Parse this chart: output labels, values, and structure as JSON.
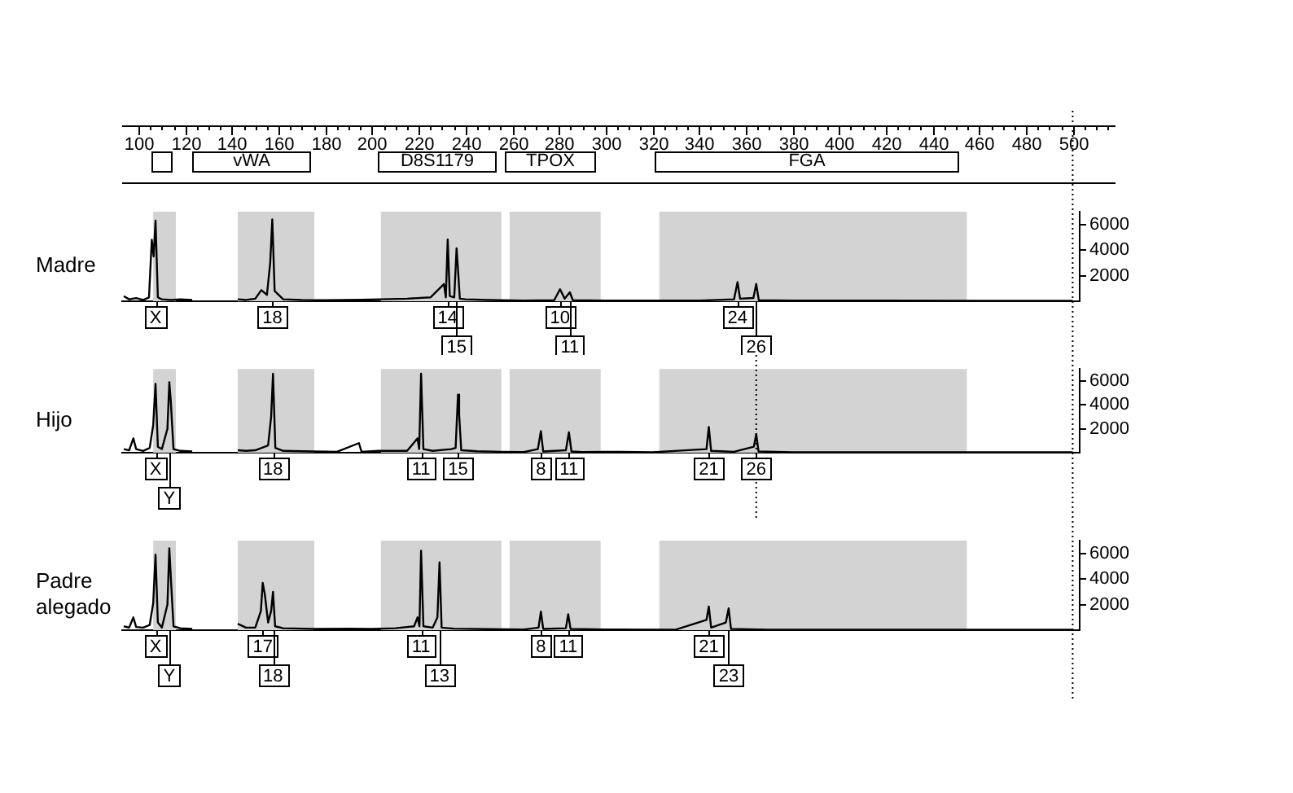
{
  "chart_data": [
    {
      "type": "other",
      "annotations": [
        "vWA",
        "D8S1179",
        "TPOX",
        "FGA"
      ]
    },
    {
      "type": "line",
      "ylabel": "Madre",
      "xlim": [
        93,
        503
      ],
      "ylim": [
        0,
        7000
      ],
      "yticks": [
        2000,
        4000,
        6000
      ],
      "grid": false,
      "legend": false,
      "xticks": [
        100,
        120,
        140,
        160,
        180,
        200,
        220,
        240,
        260,
        280,
        300,
        320,
        340,
        360,
        380,
        400,
        420,
        440,
        460,
        480,
        500
      ],
      "series": [
        {
          "color": "#000000",
          "x": [
            93.7,
            96,
            99,
            102,
            104.5,
            105.7,
            106.5,
            107.3,
            108.3,
            110,
            114,
            118,
            123,
            130,
            142.5,
            146,
            150,
            152.6,
            155,
            156.4,
            157.3,
            158.3,
            162,
            170,
            180,
            195,
            203,
            215,
            225,
            230.8,
            231.6,
            232.4,
            233.3,
            235.2,
            236.2,
            236.8,
            237.6,
            240,
            250,
            265,
            278,
            280.5,
            282.5,
            284.7,
            286,
            300,
            340,
            355,
            356.5,
            357.6,
            363.3,
            364.5,
            365.6,
            380,
            420,
            460,
            500
          ],
          "values": [
            400,
            150,
            250,
            100,
            300,
            4800,
            3500,
            6300,
            300,
            150,
            100,
            150,
            100,
            null,
            150,
            100,
            200,
            870,
            500,
            3000,
            6400,
            800,
            150,
            100,
            80,
            120,
            150,
            200,
            300,
            1350,
            300,
            4830,
            400,
            300,
            4140,
            2500,
            200,
            150,
            100,
            50,
            80,
            940,
            200,
            700,
            80,
            50,
            50,
            150,
            1500,
            200,
            250,
            1350,
            80,
            50,
            50,
            40,
            40
          ]
        }
      ],
      "bands": [
        {
          "axis": "x",
          "from": 106.3,
          "to": 116,
          "color": "#d3d3d3"
        },
        {
          "axis": "x",
          "from": 142.5,
          "to": 175.3,
          "color": "#d3d3d3"
        },
        {
          "axis": "x",
          "from": 203.8,
          "to": 255.4,
          "color": "#d3d3d3"
        },
        {
          "axis": "x",
          "from": 258.9,
          "to": 297.9,
          "color": "#d3d3d3"
        },
        {
          "axis": "x",
          "from": 323,
          "to": 454.7,
          "color": "#d3d3d3"
        }
      ],
      "ref_lines": [
        {
          "axis": "x",
          "value": 500,
          "line_style": "dotted"
        }
      ],
      "annotations": [
        {
          "text": "X",
          "x": 107.3
        },
        {
          "text": "18",
          "x": 157.3
        },
        {
          "text": "14",
          "x": 232.4
        },
        {
          "text": "15",
          "x": 236.2
        },
        {
          "text": "10",
          "x": 280.5
        },
        {
          "text": "11",
          "x": 284.7
        },
        {
          "text": "24",
          "x": 356.5
        },
        {
          "text": "26",
          "x": 364.5
        }
      ]
    },
    {
      "type": "line",
      "ylabel": "Hijo",
      "xlim": [
        93,
        503
      ],
      "ylim": [
        0,
        7000
      ],
      "yticks": [
        2000,
        4000,
        6000
      ],
      "tick_labels": "y",
      "grid": false,
      "legend": false,
      "series": [
        {
          "color": "#000000",
          "x": [
            93.7,
            96,
            97.8,
            99,
            102,
            104.8,
            106.3,
            107.3,
            108.3,
            110,
            112.4,
            113.2,
            113.8,
            115,
            118,
            123,
            130,
            142.5,
            146,
            150,
            155.5,
            156.8,
            157.6,
            158.6,
            162,
            175,
            185,
            194.4,
            195.5,
            203,
            215,
            219.5,
            220.2,
            221,
            222,
            226,
            234,
            235.8,
            236.8,
            237.3,
            238.2,
            245,
            255,
            265,
            271,
            272.3,
            273.3,
            283,
            284.3,
            285.4,
            290,
            300,
            320,
            343.2,
            344.2,
            345.2,
            355,
            363.5,
            364.5,
            365.5,
            380,
            420,
            460,
            500
          ],
          "values": [
            300,
            200,
            1200,
            300,
            150,
            400,
            2300,
            5750,
            500,
            300,
            2000,
            5900,
            4400,
            300,
            150,
            100,
            null,
            200,
            150,
            200,
            600,
            3000,
            6600,
            400,
            150,
            100,
            80,
            800,
            80,
            150,
            150,
            1200,
            300,
            6600,
            300,
            150,
            300,
            400,
            4850,
            3200,
            200,
            120,
            80,
            50,
            300,
            1800,
            100,
            200,
            1700,
            100,
            60,
            80,
            40,
            300,
            2150,
            150,
            80,
            500,
            1550,
            100,
            40,
            40,
            40,
            40
          ]
        }
      ],
      "bands": [
        {
          "axis": "x",
          "from": 106.3,
          "to": 116,
          "color": "#d3d3d3"
        },
        {
          "axis": "x",
          "from": 142.5,
          "to": 175.3,
          "color": "#d3d3d3"
        },
        {
          "axis": "x",
          "from": 203.8,
          "to": 255.4,
          "color": "#d3d3d3"
        },
        {
          "axis": "x",
          "from": 258.9,
          "to": 297.9,
          "color": "#d3d3d3"
        },
        {
          "axis": "x",
          "from": 323,
          "to": 454.7,
          "color": "#d3d3d3"
        }
      ],
      "ref_lines": [
        {
          "axis": "x",
          "value": 500,
          "line_style": "dotted"
        },
        {
          "axis": "x",
          "value": 364.5,
          "line_style": "dotted"
        }
      ],
      "annotations": [
        {
          "text": "X",
          "x": 107.3
        },
        {
          "text": "Y",
          "x": 113.2
        },
        {
          "text": "18",
          "x": 157.6
        },
        {
          "text": "11",
          "x": 221
        },
        {
          "text": "15",
          "x": 236.8
        },
        {
          "text": "8",
          "x": 272.3
        },
        {
          "text": "11",
          "x": 284.3
        },
        {
          "text": "21",
          "x": 344.2
        },
        {
          "text": "26",
          "x": 364.5
        }
      ]
    },
    {
      "type": "line",
      "ylabel": "Padre alegado",
      "xlim": [
        93,
        503
      ],
      "ylim": [
        0,
        7000
      ],
      "yticks": [
        2000,
        4000,
        6000
      ],
      "tick_labels": "y",
      "grid": false,
      "legend": false,
      "series": [
        {
          "color": "#000000",
          "x": [
            93.7,
            96,
            97.8,
            99,
            102,
            104.8,
            106.3,
            107.3,
            108.3,
            110,
            112.4,
            113.2,
            113.8,
            115,
            118,
            123,
            130,
            142.5,
            146,
            150,
            151.5,
            152.4,
            153.2,
            154.1,
            155.5,
            156.8,
            157.6,
            158.5,
            162,
            175,
            190,
            200,
            210,
            218,
            219.5,
            220.3,
            221,
            222,
            226,
            228,
            228.9,
            229.8,
            235,
            250,
            265,
            271.3,
            272.3,
            273.3,
            283,
            284,
            285,
            300,
            330,
            343.2,
            344.2,
            345.2,
            351.5,
            352.7,
            353.7,
            370,
            420,
            460,
            500
          ],
          "values": [
            300,
            200,
            1000,
            250,
            200,
            400,
            2100,
            5900,
            600,
            200,
            2000,
            6400,
            4300,
            300,
            150,
            100,
            null,
            500,
            200,
            200,
            1000,
            1500,
            3700,
            2800,
            600,
            1500,
            3000,
            300,
            150,
            100,
            120,
            100,
            150,
            300,
            1000,
            300,
            6200,
            300,
            200,
            1000,
            5300,
            200,
            120,
            80,
            50,
            200,
            1450,
            100,
            150,
            1250,
            100,
            50,
            40,
            800,
            1850,
            200,
            600,
            1700,
            100,
            40,
            40,
            40,
            40
          ]
        }
      ],
      "bands": [
        {
          "axis": "x",
          "from": 106.3,
          "to": 116,
          "color": "#d3d3d3"
        },
        {
          "axis": "x",
          "from": 142.5,
          "to": 175.3,
          "color": "#d3d3d3"
        },
        {
          "axis": "x",
          "from": 203.8,
          "to": 255.4,
          "color": "#d3d3d3"
        },
        {
          "axis": "x",
          "from": 258.9,
          "to": 297.9,
          "color": "#d3d3d3"
        },
        {
          "axis": "x",
          "from": 323,
          "to": 454.7,
          "color": "#d3d3d3"
        }
      ],
      "ref_lines": [
        {
          "axis": "x",
          "value": 500,
          "line_style": "dotted"
        }
      ],
      "annotations": [
        {
          "text": "X",
          "x": 107.3
        },
        {
          "text": "Y",
          "x": 113.2
        },
        {
          "text": "17",
          "x": 153.2
        },
        {
          "text": "18",
          "x": 157.6
        },
        {
          "text": "11",
          "x": 221
        },
        {
          "text": "13",
          "x": 228.9
        },
        {
          "text": "8",
          "x": 272.3
        },
        {
          "text": "11",
          "x": 284
        },
        {
          "text": "21",
          "x": 344.2
        },
        {
          "text": "23",
          "x": 352.7
        }
      ]
    }
  ]
}
